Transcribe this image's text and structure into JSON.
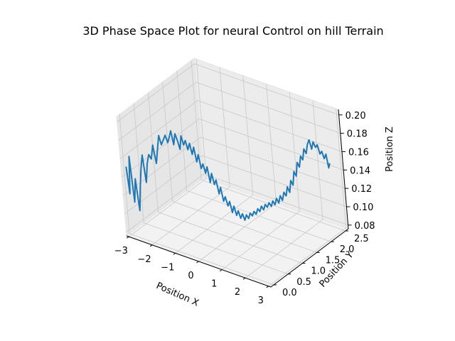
{
  "chart_data": {
    "type": "line",
    "projection": "3d",
    "title": "3D Phase Space Plot for neural Control on hill Terrain",
    "xlabel": "Position X",
    "ylabel": "Position Y",
    "zlabel": "Position Z",
    "xlim": [
      -3.1,
      3.1
    ],
    "ylim": [
      -0.1,
      2.6
    ],
    "zlim": [
      0.076,
      0.206
    ],
    "xticks": [
      "−3",
      "−2",
      "−1",
      "0",
      "1",
      "2",
      "3"
    ],
    "yticks": [
      "0.0",
      "0.5",
      "1.0",
      "1.5",
      "2.0",
      "2.5"
    ],
    "zticks": [
      "0.08",
      "0.10",
      "0.12",
      "0.14",
      "0.16",
      "0.18",
      "0.20"
    ],
    "grid": true,
    "line_color": "#1f77b4",
    "series": [
      {
        "points": [
          [
            -3.0,
            0.0,
            0.15
          ],
          [
            -2.97,
            0.03,
            0.12
          ],
          [
            -2.93,
            0.07,
            0.16
          ],
          [
            -2.88,
            0.1,
            0.11
          ],
          [
            -2.83,
            0.14,
            0.135
          ],
          [
            -2.78,
            0.17,
            0.1
          ],
          [
            -2.72,
            0.2,
            0.125
          ],
          [
            -2.66,
            0.23,
            0.145
          ],
          [
            -2.6,
            0.26,
            0.16
          ],
          [
            -2.55,
            0.29,
            0.13
          ],
          [
            -2.49,
            0.32,
            0.15
          ],
          [
            -2.43,
            0.35,
            0.16
          ],
          [
            -2.37,
            0.38,
            0.155
          ],
          [
            -2.3,
            0.41,
            0.17
          ],
          [
            -2.24,
            0.44,
            0.15
          ],
          [
            -2.18,
            0.47,
            0.165
          ],
          [
            -2.12,
            0.5,
            0.18
          ],
          [
            -2.06,
            0.52,
            0.17
          ],
          [
            -2.0,
            0.55,
            0.175
          ],
          [
            -1.94,
            0.58,
            0.18
          ],
          [
            -1.88,
            0.6,
            0.172
          ],
          [
            -1.82,
            0.62,
            0.178
          ],
          [
            -1.76,
            0.64,
            0.185
          ],
          [
            -1.7,
            0.66,
            0.17
          ],
          [
            -1.64,
            0.68,
            0.182
          ],
          [
            -1.58,
            0.7,
            0.175
          ],
          [
            -1.52,
            0.72,
            0.165
          ],
          [
            -1.46,
            0.74,
            0.18
          ],
          [
            -1.4,
            0.76,
            0.17
          ],
          [
            -1.34,
            0.78,
            0.175
          ],
          [
            -1.28,
            0.8,
            0.165
          ],
          [
            -1.22,
            0.82,
            0.172
          ],
          [
            -1.16,
            0.84,
            0.16
          ],
          [
            -1.1,
            0.86,
            0.168
          ],
          [
            -1.04,
            0.88,
            0.152
          ],
          [
            -0.98,
            0.9,
            0.16
          ],
          [
            -0.92,
            0.92,
            0.145
          ],
          [
            -0.86,
            0.94,
            0.15
          ],
          [
            -0.8,
            0.96,
            0.14
          ],
          [
            -0.74,
            0.98,
            0.147
          ],
          [
            -0.68,
            1.0,
            0.13
          ],
          [
            -0.62,
            1.02,
            0.14
          ],
          [
            -0.56,
            1.04,
            0.128
          ],
          [
            -0.5,
            1.06,
            0.133
          ],
          [
            -0.44,
            1.08,
            0.118
          ],
          [
            -0.38,
            1.1,
            0.125
          ],
          [
            -0.32,
            1.12,
            0.11
          ],
          [
            -0.26,
            1.14,
            0.115
          ],
          [
            -0.2,
            1.16,
            0.105
          ],
          [
            -0.14,
            1.18,
            0.11
          ],
          [
            -0.08,
            1.2,
            0.098
          ],
          [
            -0.02,
            1.22,
            0.105
          ],
          [
            0.04,
            1.24,
            0.095
          ],
          [
            0.1,
            1.26,
            0.1
          ],
          [
            0.16,
            1.28,
            0.092
          ],
          [
            0.22,
            1.3,
            0.097
          ],
          [
            0.28,
            1.32,
            0.09
          ],
          [
            0.34,
            1.34,
            0.096
          ],
          [
            0.4,
            1.36,
            0.092
          ],
          [
            0.46,
            1.38,
            0.098
          ],
          [
            0.52,
            1.4,
            0.095
          ],
          [
            0.58,
            1.42,
            0.1
          ],
          [
            0.64,
            1.44,
            0.097
          ],
          [
            0.7,
            1.46,
            0.103
          ],
          [
            0.76,
            1.48,
            0.1
          ],
          [
            0.82,
            1.5,
            0.106
          ],
          [
            0.88,
            1.52,
            0.102
          ],
          [
            0.94,
            1.54,
            0.108
          ],
          [
            1.0,
            1.56,
            0.105
          ],
          [
            1.06,
            1.58,
            0.11
          ],
          [
            1.12,
            1.6,
            0.106
          ],
          [
            1.18,
            1.62,
            0.112
          ],
          [
            1.24,
            1.64,
            0.108
          ],
          [
            1.3,
            1.66,
            0.115
          ],
          [
            1.36,
            1.68,
            0.11
          ],
          [
            1.42,
            1.7,
            0.118
          ],
          [
            1.48,
            1.72,
            0.113
          ],
          [
            1.54,
            1.74,
            0.122
          ],
          [
            1.6,
            1.76,
            0.118
          ],
          [
            1.66,
            1.78,
            0.128
          ],
          [
            1.72,
            1.8,
            0.122
          ],
          [
            1.78,
            1.82,
            0.135
          ],
          [
            1.84,
            1.84,
            0.13
          ],
          [
            1.9,
            1.86,
            0.145
          ],
          [
            1.96,
            1.88,
            0.14
          ],
          [
            2.02,
            1.9,
            0.155
          ],
          [
            2.08,
            1.92,
            0.15
          ],
          [
            2.14,
            1.94,
            0.162
          ],
          [
            2.2,
            1.96,
            0.158
          ],
          [
            2.26,
            1.98,
            0.17
          ],
          [
            2.32,
            2.0,
            0.165
          ],
          [
            2.38,
            2.02,
            0.175
          ],
          [
            2.44,
            2.04,
            0.18
          ],
          [
            2.5,
            2.06,
            0.17
          ],
          [
            2.56,
            2.08,
            0.178
          ],
          [
            2.62,
            2.1,
            0.172
          ],
          [
            2.68,
            2.12,
            0.175
          ],
          [
            2.74,
            2.14,
            0.165
          ],
          [
            2.8,
            2.16,
            0.168
          ],
          [
            2.86,
            2.18,
            0.16
          ],
          [
            2.92,
            2.2,
            0.165
          ],
          [
            2.97,
            2.22,
            0.15
          ],
          [
            3.0,
            2.24,
            0.155
          ]
        ]
      }
    ]
  }
}
